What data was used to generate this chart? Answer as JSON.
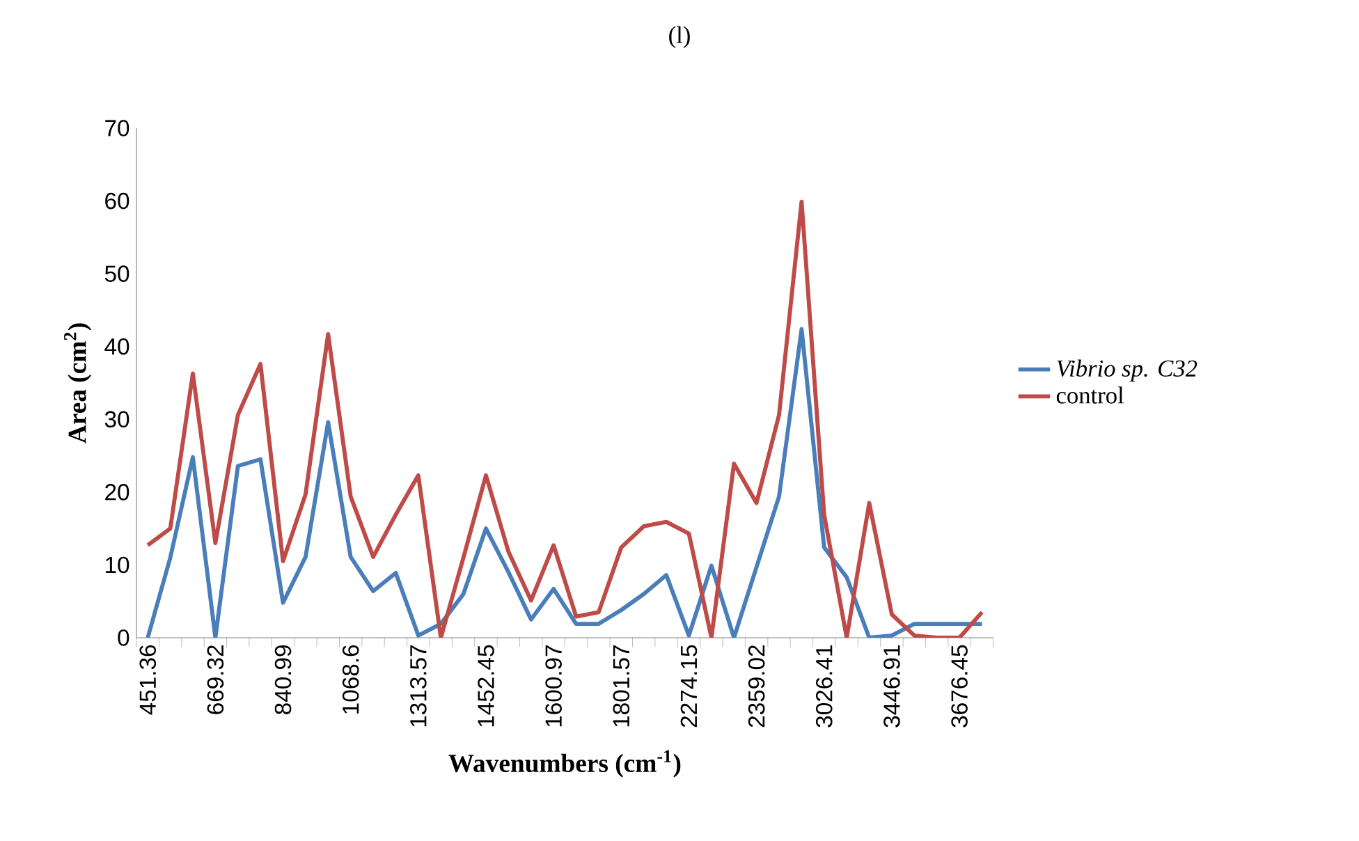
{
  "chart_data": {
    "type": "line",
    "title": "(l)",
    "xlabel": "Wavenumbers (cm$^{-1}$)",
    "ylabel": "Area (cm$^{2}$)",
    "categories": [
      "451.36",
      null,
      null,
      "669.32",
      null,
      null,
      "840.99",
      null,
      null,
      "1068.6",
      null,
      null,
      "1313.57",
      null,
      null,
      "1452.45",
      null,
      null,
      "1600.97",
      null,
      null,
      "1801.57",
      null,
      null,
      "2274.15",
      null,
      null,
      "2359.02",
      null,
      null,
      "3026.41",
      null,
      null,
      "3446.91",
      null,
      null,
      "3676.45",
      null
    ],
    "series": [
      {
        "name": "*Vibrio sp. C32*",
        "color": "#4a7ebb",
        "values": [
          0,
          11,
          24.8,
          0,
          23.6,
          24.5,
          4.8,
          11.1,
          29.6,
          11.1,
          6.4,
          8.9,
          0.3,
          1.9,
          6,
          15,
          9,
          2.5,
          6.7,
          1.9,
          1.9,
          3.8,
          6,
          8.6,
          0.3,
          9.9,
          0,
          9.7,
          19.4,
          42.4,
          12.4,
          8.3,
          0,
          0.3,
          1.9,
          1.9,
          1.9,
          1.9
        ]
      },
      {
        "name": "control",
        "color": "#be4b48",
        "values": [
          12.7,
          15,
          36.3,
          13,
          30.6,
          37.6,
          10.5,
          19.7,
          41.7,
          19.4,
          11.1,
          16.9,
          22.3,
          0,
          11,
          22.3,
          11.8,
          5.1,
          12.7,
          2.9,
          3.5,
          12.4,
          15.3,
          15.9,
          14.3,
          0,
          23.9,
          18.5,
          30.6,
          59.9,
          16.9,
          0,
          18.5,
          3.2,
          0.3,
          0,
          0,
          3.5
        ]
      }
    ],
    "ylim": [
      0,
      70
    ],
    "yticks": [
      0,
      10,
      20,
      30,
      40,
      50,
      60,
      70
    ],
    "grid": false,
    "legend": "right",
    "marker": "none",
    "line_style": "solid"
  }
}
